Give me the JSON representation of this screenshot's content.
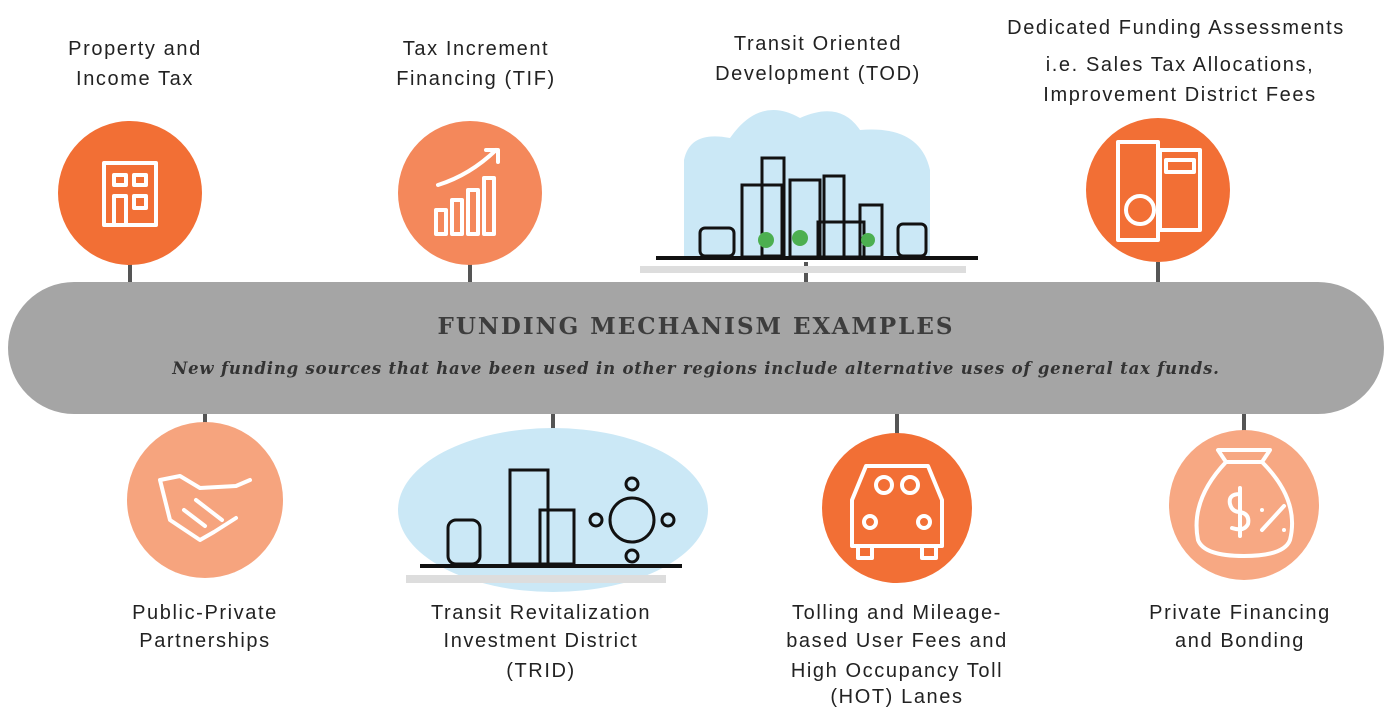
{
  "header": {
    "title": "FUNDING MECHANISM EXAMPLES",
    "subtitle": "New funding sources that have been used in other regions include alternative uses of general tax funds."
  },
  "top_items": [
    {
      "lines": [
        "Property and",
        "Income Tax"
      ]
    },
    {
      "lines": [
        "Tax Increment",
        "Financing (TIF)"
      ]
    },
    {
      "lines": [
        "Transit Oriented",
        "Development (TOD)"
      ]
    },
    {
      "lines": [
        "Dedicated Funding Assessments"
      ],
      "note": [
        "i.e. Sales Tax Allocations,",
        "Improvement District Fees"
      ]
    }
  ],
  "bottom_items": [
    {
      "lines": [
        "Public-Private",
        "Partnerships"
      ]
    },
    {
      "lines": [
        "Transit Revitalization",
        "Investment District",
        "(TRID)"
      ]
    },
    {
      "lines": [
        "Tolling and Mileage-",
        "based User Fees and",
        "High Occupancy Toll",
        "(HOT) Lanes"
      ]
    },
    {
      "lines": [
        "Private Financing",
        "and Bonding"
      ]
    }
  ]
}
